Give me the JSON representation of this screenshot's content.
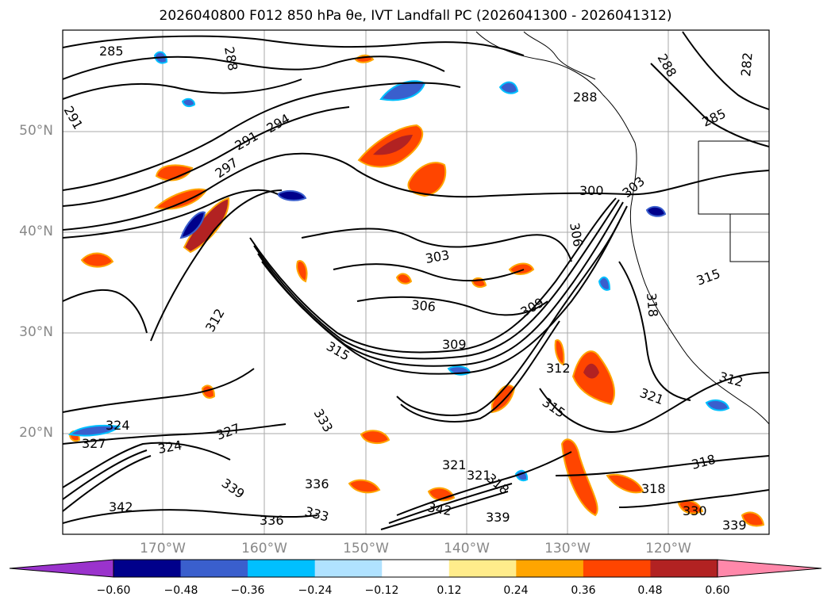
{
  "title": "2026040800 F012 850 hPa θe, IVT Landfall PC (2026041300 - 2026041312)",
  "map": {
    "lat_labels": [
      "50°N",
      "40°N",
      "30°N",
      "20°N"
    ],
    "lon_labels": [
      "170°W",
      "160°W",
      "150°W",
      "140°W",
      "130°W",
      "120°W"
    ],
    "contour_labels": [
      "285",
      "288",
      "288",
      "288",
      "285",
      "282",
      "291",
      "291",
      "294",
      "297",
      "300",
      "303",
      "303",
      "306",
      "306",
      "309",
      "309",
      "312",
      "312",
      "312",
      "315",
      "315",
      "315",
      "318",
      "318",
      "318",
      "318",
      "321",
      "321",
      "321",
      "324",
      "324",
      "327",
      "327",
      "330",
      "333",
      "333",
      "336",
      "336",
      "339",
      "339",
      "339",
      "342",
      "342"
    ],
    "contour_color": "#000000",
    "grid": true,
    "coastline_color": "#000000"
  },
  "colorbar": {
    "tick_labels": [
      "−0.60",
      "−0.48",
      "−0.36",
      "−0.24",
      "−0.12",
      "0.12",
      "0.24",
      "0.36",
      "0.48",
      "0.60"
    ],
    "colors": [
      "#9a33cc",
      "#00008b",
      "#3a5fcd",
      "#00bfff",
      "#b0e2ff",
      "#ffffff",
      "#ffec8b",
      "#ffa500",
      "#ff4500",
      "#b22222",
      "#ff88aa"
    ]
  }
}
